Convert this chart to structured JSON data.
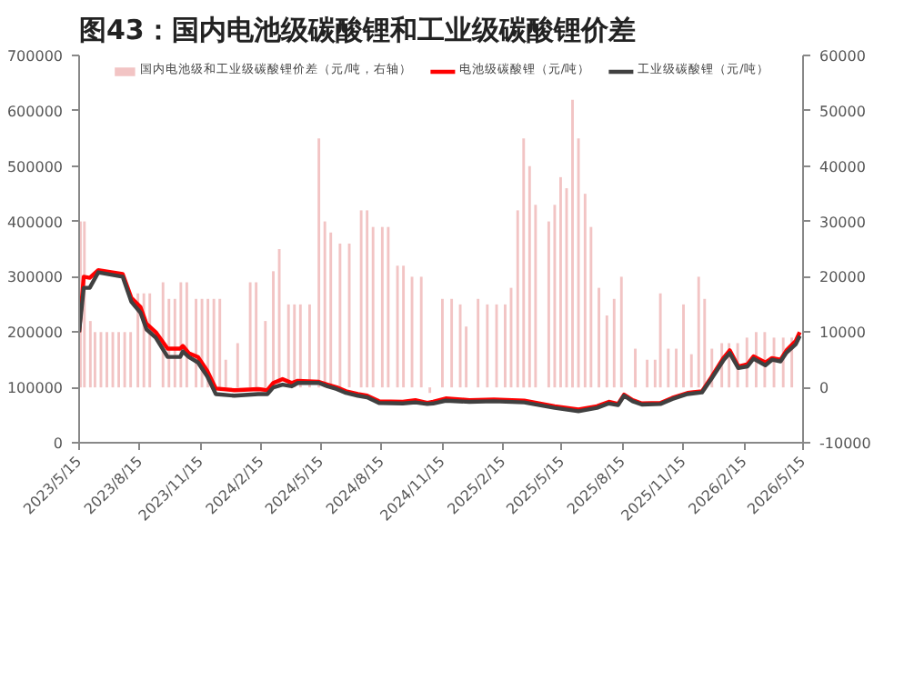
{
  "chart_data": {
    "type": "line",
    "title": "图43：国内电池级碳酸锂和工业级碳酸锂价差",
    "xlim": [
      "2023-05-15",
      "2026-05-15"
    ],
    "xticks": [
      {
        "value": "2023-05-15",
        "label": "2023/5/15"
      },
      {
        "value": "2023-08-15",
        "label": "2023/8/15"
      },
      {
        "value": "2023-11-15",
        "label": "2023/11/15"
      },
      {
        "value": "2024-02-15",
        "label": "2024/2/15"
      },
      {
        "value": "2024-05-15",
        "label": "2024/5/15"
      },
      {
        "value": "2024-08-15",
        "label": "2024/8/15"
      },
      {
        "value": "2024-11-15",
        "label": "2024/11/15"
      },
      {
        "value": "2025-02-15",
        "label": "2025/2/15"
      },
      {
        "value": "2025-05-15",
        "label": "2025/5/15"
      },
      {
        "value": "2025-08-15",
        "label": "2025/8/15"
      },
      {
        "value": "2025-11-15",
        "label": "2025/11/15"
      },
      {
        "value": "2026-02-15",
        "label": "2026/2/15"
      },
      {
        "value": "2026-05-15",
        "label": "2026/5/15"
      }
    ],
    "ylim": [
      0,
      700000
    ],
    "yticks": [
      0,
      100000,
      200000,
      300000,
      400000,
      500000,
      600000,
      700000
    ],
    "y2lim": [
      -10000,
      60000
    ],
    "y2ticks": [
      -10000,
      0,
      10000,
      20000,
      30000,
      40000,
      50000,
      60000
    ],
    "grid": false,
    "legend": "top",
    "marker": "none",
    "line_style": "solid",
    "series": [
      {
        "name": "国内电池级和工业级碳酸锂价差（元/吨，右轴）",
        "type": "bar",
        "axis": "y2",
        "color": "#f2c4c4",
        "x": [
          "2023-05-17",
          "2023-05-23",
          "2023-06-01",
          "2023-06-08",
          "2023-06-17",
          "2023-06-26",
          "2023-07-05",
          "2023-07-14",
          "2023-07-23",
          "2023-08-01",
          "2023-08-12",
          "2023-08-21",
          "2023-08-30",
          "2023-09-19",
          "2023-09-28",
          "2023-10-07",
          "2023-10-16",
          "2023-10-25",
          "2023-11-08",
          "2023-11-17",
          "2023-11-26",
          "2023-12-05",
          "2023-12-14",
          "2023-12-23",
          "2024-01-10",
          "2024-01-29",
          "2024-02-07",
          "2024-02-21",
          "2024-03-04",
          "2024-03-13",
          "2024-03-27",
          "2024-04-05",
          "2024-04-14",
          "2024-04-28",
          "2024-05-12",
          "2024-05-21",
          "2024-05-30",
          "2024-06-13",
          "2024-06-27",
          "2024-07-15",
          "2024-07-24",
          "2024-08-02",
          "2024-08-16",
          "2024-08-25",
          "2024-09-08",
          "2024-09-17",
          "2024-09-30",
          "2024-10-14",
          "2024-10-27",
          "2024-11-15",
          "2024-11-29",
          "2024-12-12",
          "2024-12-21",
          "2025-01-08",
          "2025-01-22",
          "2025-02-05",
          "2025-02-18",
          "2025-02-27",
          "2025-03-09",
          "2025-03-18",
          "2025-03-27",
          "2025-04-05",
          "2025-04-25",
          "2025-05-04",
          "2025-05-13",
          "2025-05-22",
          "2025-05-31",
          "2025-06-09",
          "2025-06-19",
          "2025-06-28",
          "2025-07-10",
          "2025-07-22",
          "2025-08-02",
          "2025-08-13",
          "2025-09-03",
          "2025-09-21",
          "2025-10-03",
          "2025-10-11",
          "2025-10-23",
          "2025-11-04",
          "2025-11-15",
          "2025-11-27",
          "2025-12-08",
          "2025-12-17",
          "2025-12-28",
          "2026-01-12",
          "2026-01-23",
          "2026-02-05",
          "2026-02-19",
          "2026-03-05",
          "2026-03-18",
          "2026-04-01",
          "2026-04-15",
          "2026-04-28"
        ],
        "values": [
          30000,
          30000,
          12000,
          10000,
          10000,
          10000,
          10000,
          10000,
          10000,
          10000,
          17000,
          17000,
          17000,
          19000,
          16000,
          16000,
          19000,
          19000,
          16000,
          16000,
          16000,
          16000,
          16000,
          5000,
          8000,
          19000,
          19000,
          12000,
          21000,
          25000,
          15000,
          15000,
          15000,
          15000,
          45000,
          30000,
          28000,
          26000,
          26000,
          32000,
          32000,
          29000,
          29000,
          29000,
          22000,
          22000,
          20000,
          20000,
          -1000,
          16000,
          16000,
          15000,
          11000,
          16000,
          15000,
          15000,
          15000,
          18000,
          32000,
          45000,
          40000,
          33000,
          30000,
          33000,
          38000,
          36000,
          52000,
          45000,
          35000,
          29000,
          18000,
          13000,
          16000,
          20000,
          7000,
          5000,
          5000,
          17000,
          7000,
          7000,
          15000,
          6000,
          20000,
          16000,
          7000,
          8000,
          8000,
          8000,
          9000,
          10000,
          10000,
          9000,
          9000,
          9000
        ]
      },
      {
        "name": "电池级碳酸锂（元/吨）",
        "type": "line",
        "color": "#ff0000",
        "x": [
          "2023-05-15",
          "2023-05-22",
          "2023-05-31",
          "2023-06-13",
          "2023-07-20",
          "2023-08-02",
          "2023-08-16",
          "2023-08-25",
          "2023-09-08",
          "2023-09-26",
          "2023-10-15",
          "2023-10-19",
          "2023-10-28",
          "2023-11-11",
          "2023-11-25",
          "2023-12-08",
          "2024-01-05",
          "2024-02-10",
          "2024-02-24",
          "2024-03-04",
          "2024-03-18",
          "2024-04-01",
          "2024-04-10",
          "2024-05-12",
          "2024-05-25",
          "2024-06-08",
          "2024-06-22",
          "2024-07-10",
          "2024-07-24",
          "2024-08-11",
          "2024-09-16",
          "2024-10-05",
          "2024-10-23",
          "2024-11-01",
          "2024-11-20",
          "2024-12-26",
          "2025-02-01",
          "2025-03-19",
          "2025-05-04",
          "2025-06-09",
          "2025-07-07",
          "2025-07-25",
          "2025-08-08",
          "2025-08-17",
          "2025-08-30",
          "2025-09-13",
          "2025-10-11",
          "2025-10-29",
          "2025-11-21",
          "2025-12-13",
          "2025-12-27",
          "2026-01-15",
          "2026-01-24",
          "2026-02-06",
          "2026-02-20",
          "2026-03-01",
          "2026-03-19",
          "2026-03-29",
          "2026-04-11",
          "2026-04-20",
          "2026-05-04",
          "2026-05-10"
        ],
        "values": [
          200000,
          300000,
          298000,
          312000,
          305000,
          262000,
          245000,
          215000,
          200000,
          170000,
          170000,
          175000,
          162000,
          155000,
          130000,
          98000,
          95000,
          97000,
          95000,
          108000,
          115000,
          108000,
          112000,
          110000,
          105000,
          100000,
          93000,
          88000,
          85000,
          75000,
          74000,
          77000,
          72000,
          74000,
          80000,
          77000,
          78000,
          76000,
          66000,
          60000,
          66000,
          74000,
          70000,
          87000,
          77000,
          71000,
          72000,
          81000,
          90000,
          93000,
          118000,
          154000,
          167000,
          138000,
          142000,
          156000,
          145000,
          153000,
          150000,
          167000,
          184000,
          200000
        ]
      },
      {
        "name": "工业级碳酸锂（元/吨）",
        "type": "line",
        "color": "#404040",
        "x": [
          "2023-05-15",
          "2023-05-22",
          "2023-05-31",
          "2023-06-13",
          "2023-07-20",
          "2023-08-02",
          "2023-08-16",
          "2023-08-25",
          "2023-09-08",
          "2023-09-26",
          "2023-10-15",
          "2023-10-19",
          "2023-10-28",
          "2023-11-11",
          "2023-11-25",
          "2023-12-08",
          "2024-01-05",
          "2024-02-10",
          "2024-02-24",
          "2024-03-04",
          "2024-03-18",
          "2024-04-01",
          "2024-04-10",
          "2024-05-12",
          "2024-05-25",
          "2024-06-08",
          "2024-06-22",
          "2024-07-10",
          "2024-07-24",
          "2024-08-11",
          "2024-09-16",
          "2024-10-05",
          "2024-10-23",
          "2024-11-01",
          "2024-11-20",
          "2024-12-26",
          "2025-02-01",
          "2025-03-19",
          "2025-05-04",
          "2025-06-09",
          "2025-07-07",
          "2025-07-25",
          "2025-08-08",
          "2025-08-17",
          "2025-08-30",
          "2025-09-13",
          "2025-10-11",
          "2025-10-29",
          "2025-11-21",
          "2025-12-13",
          "2025-12-27",
          "2026-01-15",
          "2026-01-24",
          "2026-02-06",
          "2026-02-20",
          "2026-03-01",
          "2026-03-19",
          "2026-03-29",
          "2026-04-11",
          "2026-04-20",
          "2026-05-04",
          "2026-05-10"
        ],
        "values": [
          200000,
          280000,
          280000,
          308000,
          300000,
          255000,
          235000,
          205000,
          190000,
          155000,
          155000,
          165000,
          155000,
          145000,
          120000,
          88000,
          85000,
          88000,
          88000,
          100000,
          105000,
          102000,
          108000,
          108000,
          102000,
          97000,
          90000,
          85000,
          82000,
          72000,
          71000,
          73000,
          70000,
          71000,
          76000,
          74000,
          75000,
          73000,
          63000,
          57000,
          63000,
          71000,
          68000,
          85000,
          75000,
          69000,
          70000,
          79000,
          88000,
          91000,
          115000,
          150000,
          162000,
          135000,
          138000,
          152000,
          140000,
          150000,
          147000,
          163000,
          178000,
          193000
        ]
      }
    ]
  }
}
